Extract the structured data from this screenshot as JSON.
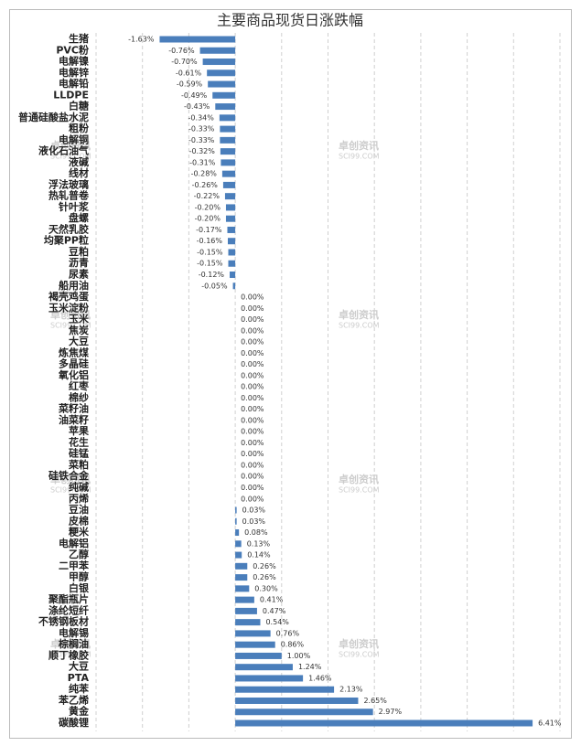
{
  "chart_data": {
    "type": "hbar",
    "title": "主要商品现货日涨跌幅",
    "categories": [
      "生猪",
      "PVC粉",
      "电解镍",
      "电解锌",
      "电解铅",
      "LLDPE",
      "白糖",
      "普通硅酸盐水泥",
      "粗粉",
      "电解铜",
      "液化石油气",
      "液碱",
      "线材",
      "浮法玻璃",
      "热轧普卷",
      "针叶浆",
      "盘螺",
      "天然乳胶",
      "均聚PP粒",
      "豆粕",
      "沥青",
      "尿素",
      "船用油",
      "褐壳鸡蛋",
      "玉米淀粉",
      "玉米",
      "焦炭",
      "大豆",
      "炼焦煤",
      "多晶硅",
      "氧化铝",
      "红枣",
      "棉纱",
      "菜籽油",
      "油菜籽",
      "苹果",
      "花生",
      "硅锰",
      "菜粕",
      "硅铁合金",
      "纯碱",
      "丙烯",
      "豆油",
      "皮棉",
      "粳米",
      "电解铝",
      "乙醇",
      "二甲苯",
      "甲醇",
      "白银",
      "聚酯瓶片",
      "涤纶短纤",
      "不锈钢板材",
      "电解锡",
      "棕榈油",
      "顺丁橡胶",
      "大豆",
      "PTA",
      "纯苯",
      "苯乙烯",
      "黄金",
      "碳酸锂"
    ],
    "values": [
      -1.63,
      -0.76,
      -0.7,
      -0.61,
      -0.59,
      -0.49,
      -0.43,
      -0.34,
      -0.33,
      -0.33,
      -0.32,
      -0.31,
      -0.28,
      -0.26,
      -0.22,
      -0.2,
      -0.2,
      -0.17,
      -0.16,
      -0.15,
      -0.15,
      -0.12,
      -0.05,
      0,
      0,
      0,
      0,
      0,
      0,
      0,
      0,
      0,
      0,
      0,
      0,
      0,
      0,
      0,
      0,
      0,
      0,
      0,
      0.03,
      0.03,
      0.08,
      0.13,
      0.14,
      0.26,
      0.26,
      0.3,
      0.41,
      0.47,
      0.54,
      0.76,
      0.86,
      1.0,
      1.24,
      1.46,
      2.13,
      2.65,
      2.97,
      6.41
    ],
    "value_labels": [
      "-1.63%",
      "-0.76%",
      "-0.70%",
      "-0.61%",
      "-0.59%",
      "-0.49%",
      "-0.43%",
      "-0.34%",
      "-0.33%",
      "-0.33%",
      "-0.32%",
      "-0.31%",
      "-0.28%",
      "-0.26%",
      "-0.22%",
      "-0.20%",
      "-0.20%",
      "-0.17%",
      "-0.16%",
      "-0.15%",
      "-0.15%",
      "-0.12%",
      "-0.05%",
      "0.00%",
      "0.00%",
      "0.00%",
      "0.00%",
      "0.00%",
      "0.00%",
      "0.00%",
      "0.00%",
      "0.00%",
      "0.00%",
      "0.00%",
      "0.00%",
      "0.00%",
      "0.00%",
      "0.00%",
      "0.00%",
      "0.00%",
      "0.00%",
      "0.00%",
      "0.03%",
      "0.03%",
      "0.08%",
      "0.13%",
      "0.14%",
      "0.26%",
      "0.26%",
      "0.30%",
      "0.41%",
      "0.47%",
      "0.54%",
      "0.76%",
      "0.86%",
      "1.00%",
      "1.24%",
      "1.46%",
      "2.13%",
      "2.65%",
      "2.97%",
      "6.41%"
    ],
    "color": "#4a7ebb",
    "xlim": [
      -3,
      7
    ],
    "xticks": [
      -3,
      -2,
      -1,
      0,
      1,
      2,
      3,
      4,
      5,
      6,
      7
    ],
    "grid": true,
    "watermark": [
      "卓创资讯",
      "SCI99.COM"
    ]
  }
}
